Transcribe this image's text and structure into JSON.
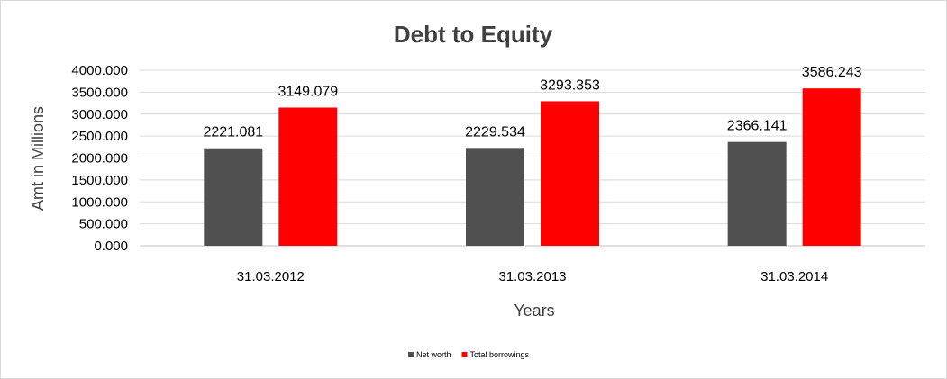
{
  "chart_data": {
    "type": "bar",
    "title": "Debt to Equity",
    "xlabel": "Years",
    "ylabel": "Amt in Millions",
    "categories": [
      "31.03.2012",
      "31.03.2013",
      "31.03.2014"
    ],
    "series": [
      {
        "name": "Net worth",
        "color": "#505050",
        "values": [
          2221.081,
          2229.534,
          2366.141
        ]
      },
      {
        "name": "Total borrowings",
        "color": "#ff0000",
        "values": [
          3149.079,
          3293.353,
          3586.243
        ]
      }
    ],
    "ylim": [
      0,
      4000
    ],
    "yticks": [
      "0.000",
      "500.000",
      "1000.000",
      "1500.000",
      "2000.000",
      "2500.000",
      "3000.000",
      "3500.000",
      "4000.000"
    ],
    "grid": true,
    "legend_position": "bottom"
  }
}
